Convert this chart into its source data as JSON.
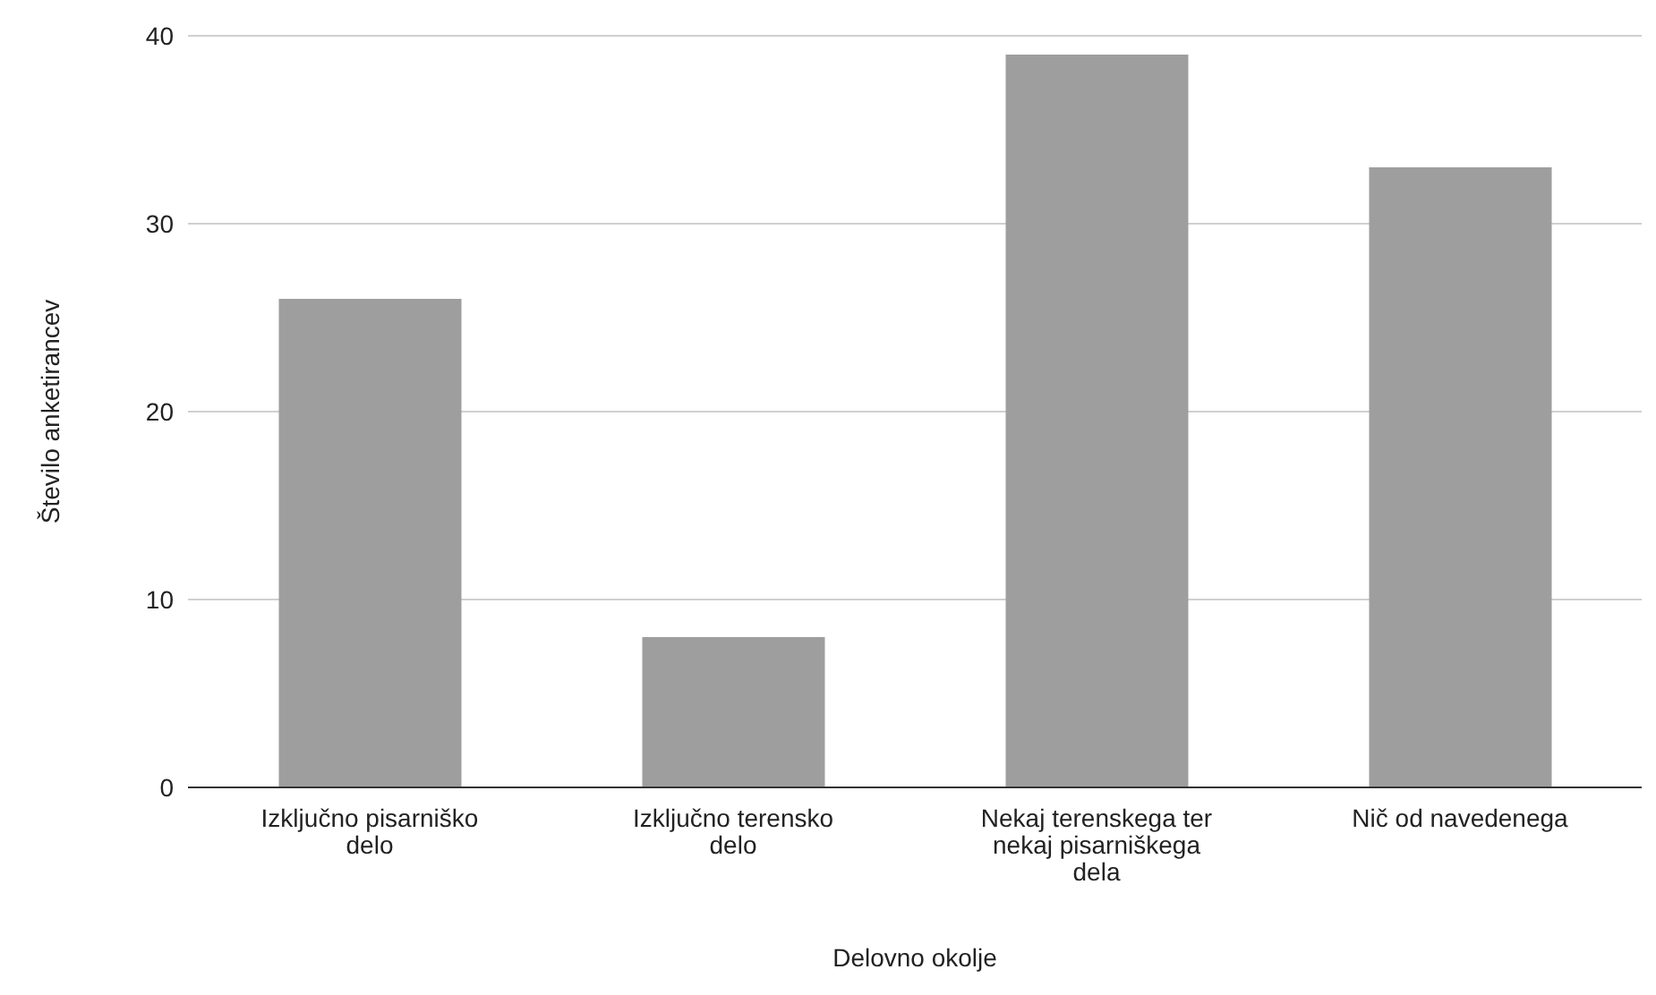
{
  "chart_data": {
    "type": "bar",
    "xlabel": "Delovno okolje",
    "ylabel": "Število anketirancev",
    "categories": [
      "Izključno pisarniško delo",
      "Izključno terensko delo",
      "Nekaj terenskega ter nekaj pisarniškega dela",
      "Nič od navedenega"
    ],
    "values": [
      26,
      8,
      39,
      33
    ],
    "color": "#9e9e9e",
    "ylim": [
      0,
      40
    ],
    "yticks": [
      0,
      10,
      20,
      30,
      40
    ],
    "grid": "y",
    "legend": false
  }
}
